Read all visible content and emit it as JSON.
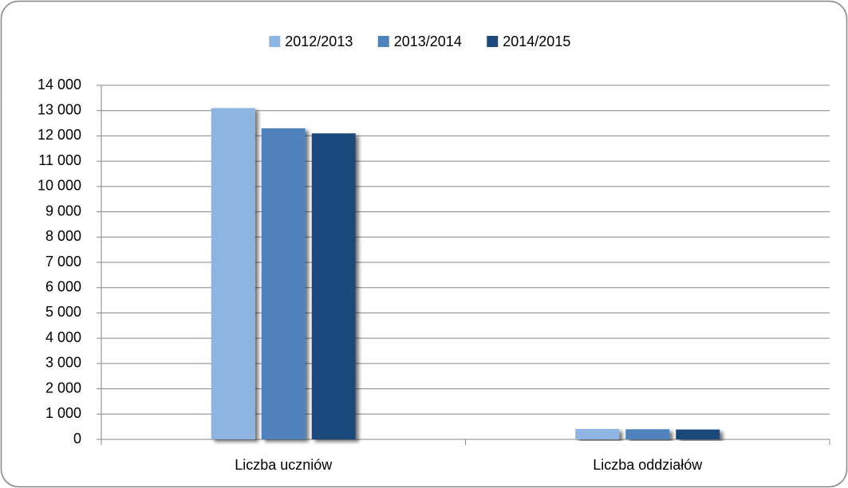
{
  "chart_data": {
    "type": "bar",
    "categories": [
      "Liczba uczniów",
      "Liczba oddziałów"
    ],
    "series": [
      {
        "name": "2012/2013",
        "color": "#8eb4e3",
        "values": [
          13100,
          410
        ]
      },
      {
        "name": "2013/2014",
        "color": "#4f81bd",
        "values": [
          12300,
          400
        ]
      },
      {
        "name": "2014/2015",
        "color": "#1f497d",
        "values": [
          12100,
          390
        ]
      }
    ],
    "ylim": [
      0,
      14000
    ],
    "yticks": [
      0,
      {
        "value": 1000,
        "label": "1 000"
      },
      {
        "value": 2000,
        "label": "2 000"
      },
      {
        "value": 3000,
        "label": "3 000"
      },
      {
        "value": 4000,
        "label": "4 000"
      },
      {
        "value": 5000,
        "label": "5 000"
      },
      {
        "value": 6000,
        "label": "6 000"
      },
      {
        "value": 7000,
        "label": "7 000"
      },
      {
        "value": 8000,
        "label": "8 000"
      },
      {
        "value": 9000,
        "label": "9 000"
      },
      {
        "value": 10000,
        "label": "10 000"
      },
      {
        "value": 11000,
        "label": "11 000"
      },
      {
        "value": 12000,
        "label": "12 000"
      },
      {
        "value": 13000,
        "label": "13 000"
      },
      {
        "value": 14000,
        "label": "14 000"
      }
    ],
    "grid": true,
    "legend": "top"
  }
}
